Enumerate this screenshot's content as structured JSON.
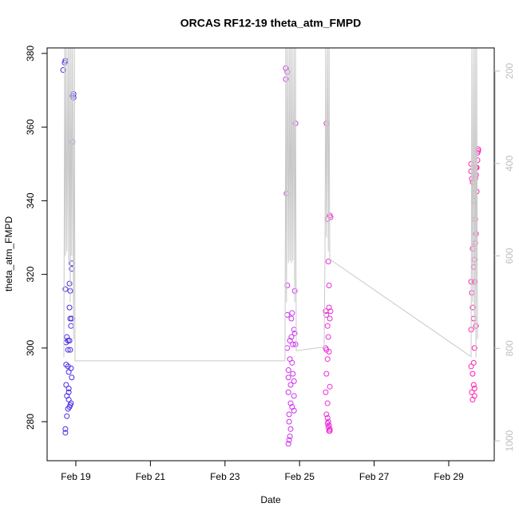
{
  "chart_data": {
    "type": "scatter",
    "title": "ORCAS RF12-19 theta_atm_FMPD",
    "xlabel": "Date",
    "ylabel": "theta_atm_FMPD",
    "xlim": [
      18.23,
      30.22
    ],
    "xticks": [
      {
        "value": 19,
        "label": "Feb 19"
      },
      {
        "value": 21,
        "label": "Feb 21"
      },
      {
        "value": 23,
        "label": "Feb 23"
      },
      {
        "value": 25,
        "label": "Feb 25"
      },
      {
        "value": 27,
        "label": "Feb 27"
      },
      {
        "value": 29,
        "label": "Feb 29"
      }
    ],
    "ylim": [
      269.4,
      381.5
    ],
    "yticks": [
      280,
      300,
      320,
      340,
      360,
      380
    ],
    "y2lim": [
      1043,
      150
    ],
    "y2ticks": [
      200,
      400,
      600,
      800,
      1000
    ],
    "series": [
      {
        "marker": "circle",
        "color": "#4b2be8",
        "x": [
          18.66,
          18.7,
          18.72,
          18.72,
          18.74,
          18.74,
          18.74,
          18.76,
          18.76,
          18.72,
          18.72,
          18.79,
          18.79,
          18.79,
          18.81,
          18.81,
          18.83,
          18.83,
          18.83,
          18.83,
          18.85,
          18.85,
          18.87,
          18.87,
          18.89,
          18.89,
          18.91,
          18.91,
          18.94,
          18.94,
          18.89,
          18.89,
          18.87,
          18.85,
          18.81,
          18.79,
          18.85,
          18.76,
          18.81
        ],
        "values": [
          375.5,
          377.5,
          378,
          316,
          301.5,
          295.5,
          290,
          287,
          281.5,
          278,
          277,
          302,
          299.5,
          295,
          293.5,
          286,
          317.5,
          311,
          302,
          284,
          315.5,
          308,
          294.5,
          285,
          308,
          292,
          356,
          368.5,
          369,
          368,
          323,
          321.5,
          306,
          299.5,
          289,
          283.5,
          284.5,
          303,
          288
        ]
      },
      {
        "marker": "circle",
        "color": "#cf2fee",
        "x": [
          24.63,
          24.63,
          24.67,
          24.65,
          24.67,
          24.67,
          24.67,
          24.7,
          24.7,
          24.7,
          24.72,
          24.72,
          24.72,
          24.7,
          24.74,
          24.74,
          24.76,
          24.76,
          24.78,
          24.78,
          24.8,
          24.8,
          24.82,
          24.85,
          24.85,
          24.85,
          24.87,
          24.89,
          24.87,
          24.89,
          24.82,
          24.8,
          24.76,
          24.74,
          24.85
        ],
        "values": [
          376,
          373,
          375,
          342,
          317,
          309,
          300,
          294,
          292,
          288,
          282,
          280,
          275,
          274,
          302,
          297,
          290,
          285,
          308,
          303,
          309.5,
          296,
          301,
          305,
          283,
          287,
          315.5,
          361,
          304,
          301,
          293,
          284,
          278,
          276,
          291
        ]
      },
      {
        "marker": "circle",
        "color": "#ec2fd8",
        "x": [
          25.72,
          25.75,
          25.77,
          25.81,
          25.83,
          25.79,
          25.7,
          25.72,
          25.75,
          25.77,
          25.79,
          25.81,
          25.83,
          25.7,
          25.72,
          25.75,
          25.72,
          25.7,
          25.75,
          25.81,
          25.79,
          25.72,
          25.75,
          25.77,
          25.79,
          25.81,
          25.77,
          25.79,
          25.75,
          25.81
        ],
        "values": [
          361,
          335,
          323.5,
          336,
          335.5,
          317,
          310,
          309,
          306,
          303,
          311,
          308,
          310,
          300,
          299.5,
          297,
          293,
          288,
          285,
          289.5,
          299,
          282,
          281,
          280,
          279,
          278,
          278.5,
          277.5,
          279.5,
          277.5
        ]
      },
      {
        "marker": "circle",
        "color": "#ff1fae",
        "x": [
          29.6,
          29.62,
          29.64,
          29.6,
          29.67,
          29.69,
          29.71,
          29.73,
          29.75,
          29.77,
          29.77,
          29.79,
          29.79,
          29.73,
          29.64,
          29.67,
          29.69,
          29.71,
          29.73,
          29.75,
          29.71,
          29.6,
          29.62,
          29.64,
          29.67,
          29.69,
          29.67,
          29.64,
          29.67,
          29.69,
          29.69,
          29.6,
          29.64,
          29.62,
          29.73,
          29.69,
          29.6
        ],
        "values": [
          348,
          346,
          345,
          350,
          340,
          342,
          346,
          347,
          349,
          351,
          353,
          354,
          353.5,
          349,
          327,
          322,
          318,
          335,
          331,
          342.5,
          328.5,
          318,
          315,
          311,
          308,
          300,
          296,
          293,
          290,
          289,
          287,
          295,
          286,
          288,
          306,
          324,
          305
        ]
      },
      {
        "marker": "line",
        "axis": "y2",
        "color": "#c8c8c8",
        "x": [
          18.68,
          18.7,
          18.72,
          18.74,
          18.76,
          18.79,
          18.81,
          18.83,
          18.85,
          18.87,
          18.89,
          18.91,
          18.94,
          18.96,
          18.98,
          19.0,
          24.61,
          24.63,
          24.65,
          24.67,
          24.7,
          24.72,
          24.74,
          24.76,
          24.78,
          24.8,
          24.82,
          24.85,
          24.87,
          24.89,
          24.91,
          25.66,
          25.68,
          25.7,
          25.72,
          25.75,
          25.77,
          25.79,
          25.81,
          29.6,
          29.62,
          29.64,
          29.67,
          29.69,
          29.71,
          29.73,
          29.75,
          29.77
        ],
        "values": [
          820,
          150,
          600,
          150,
          590,
          150,
          620,
          150,
          700,
          150,
          600,
          150,
          780,
          150,
          827,
          827,
          827,
          150,
          700,
          150,
          615,
          150,
          610,
          150,
          615,
          150,
          610,
          150,
          700,
          150,
          805,
          797,
          600,
          150,
          560,
          150,
          590,
          150,
          607,
          818,
          150,
          700,
          150,
          760,
          150,
          820,
          150,
          780
        ]
      }
    ]
  }
}
